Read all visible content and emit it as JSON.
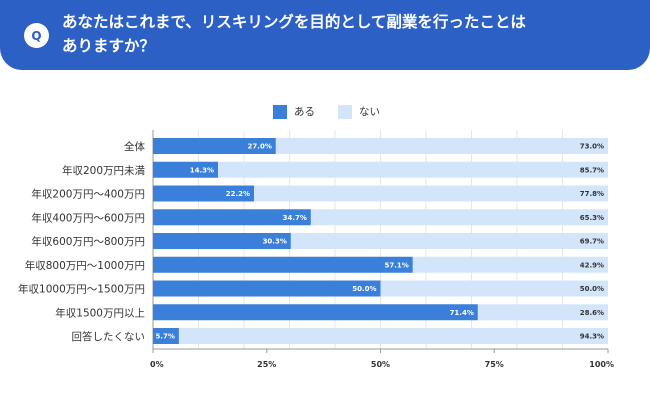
{
  "header": {
    "badge": "Q",
    "title_line1": "あなたはこれまで、リスキリングを目的として副業を行ったことは",
    "title_line2": "ありますか？"
  },
  "colors": {
    "header_bg": "#2c60c5",
    "series_yes": "#3a7fd9",
    "series_no": "#d3e5fb",
    "grid": "#e6e6e6",
    "axis": "#9a9a9a"
  },
  "chart_data": {
    "type": "bar",
    "orientation": "horizontal",
    "stacked": true,
    "title": "あなたはこれまで、リスキリングを目的として副業を行ったことはありますか？",
    "categories": [
      "全体",
      "年収200万円未満",
      "年収200万円〜400万円",
      "年収400万円〜600万円",
      "年収600万円〜800万円",
      "年収800万円〜1000万円",
      "年収1000万円〜1500万円",
      "年収1500万円以上",
      "回答したくない"
    ],
    "series": [
      {
        "name": "ある",
        "values": [
          27.0,
          14.3,
          22.2,
          34.7,
          30.3,
          57.1,
          50.0,
          71.4,
          5.7
        ]
      },
      {
        "name": "ない",
        "values": [
          73.0,
          85.7,
          77.8,
          65.3,
          69.7,
          42.9,
          50.0,
          28.6,
          94.3
        ]
      }
    ],
    "xlim": [
      0,
      100
    ],
    "xticks": [
      0,
      25,
      50,
      75,
      100
    ],
    "xtick_labels": [
      "0%",
      "25%",
      "50%",
      "75%",
      "100%"
    ],
    "grid": true,
    "legend_position": "top-center",
    "value_suffix": "%",
    "xlabel": "",
    "ylabel": ""
  }
}
